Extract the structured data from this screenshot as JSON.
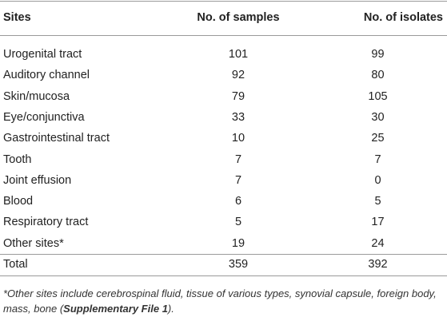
{
  "table": {
    "header": [
      "Sites",
      "No. of samples",
      "No. of isolates"
    ],
    "rows": [
      [
        "Urogenital tract",
        101,
        99
      ],
      [
        "Auditory channel",
        92,
        80
      ],
      [
        "Skin/mucosa",
        79,
        105
      ],
      [
        "Eye/conjunctiva",
        33,
        30
      ],
      [
        "Gastrointestinal tract",
        10,
        25
      ],
      [
        "Tooth",
        7,
        7
      ],
      [
        "Joint effusion",
        7,
        0
      ],
      [
        "Blood",
        6,
        5
      ],
      [
        "Respiratory tract",
        5,
        17
      ],
      [
        "Other sites*",
        19,
        24
      ]
    ],
    "total": [
      "Total",
      359,
      392
    ]
  },
  "footnote": {
    "text": "*Other sites include cerebrospinal fluid, tissue of various types, synovial capsule, foreign body, mass, bone (",
    "bold": "Supplementary File 1",
    "end": ")."
  }
}
